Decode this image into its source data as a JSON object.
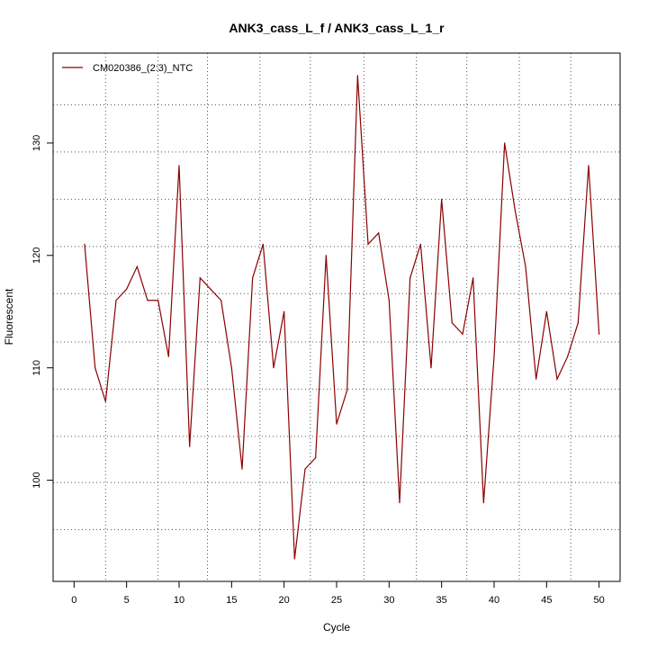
{
  "chart_data": {
    "type": "line",
    "title": "ANK3_cass_L_f / ANK3_cass_L_1_r",
    "xlabel": "Cycle",
    "ylabel": "Fluorescent",
    "xlim": [
      -2,
      52
    ],
    "ylim": [
      91,
      138
    ],
    "x_ticks": [
      0,
      5,
      10,
      15,
      20,
      25,
      30,
      35,
      40,
      45,
      50
    ],
    "y_ticks": [
      100,
      110,
      120,
      130
    ],
    "grid": "dotted",
    "vertical_gridlines": [
      3,
      8,
      12.7,
      17.7,
      22.5,
      27.6,
      32.6,
      37.4,
      42.4,
      47.3
    ],
    "horizontal_gridlines": [
      95.6,
      99.8,
      103.9,
      108.1,
      112.3,
      116.6,
      120.8,
      125.0,
      129.2,
      133.4
    ],
    "legend": {
      "placement": "top-left",
      "entries": [
        "CM020386_(2:3)_NTC"
      ]
    },
    "series": [
      {
        "name": "CM020386_(2:3)_NTC",
        "color": "#8B0000",
        "x": [
          1,
          2,
          3,
          4,
          5,
          6,
          7,
          8,
          9,
          10,
          11,
          12,
          13,
          14,
          15,
          16,
          17,
          18,
          19,
          20,
          21,
          22,
          23,
          24,
          25,
          26,
          27,
          28,
          29,
          30,
          31,
          32,
          33,
          34,
          35,
          36,
          37,
          38,
          39,
          40,
          41,
          42,
          43,
          44,
          45,
          46,
          47,
          48,
          49,
          50
        ],
        "y": [
          121,
          110,
          107,
          116,
          117,
          119,
          116,
          116,
          111,
          128,
          103,
          118,
          117,
          116,
          110,
          101,
          118,
          121,
          110,
          115,
          93,
          101,
          102,
          120,
          105,
          108,
          136,
          121,
          122,
          116,
          98,
          118,
          121,
          110,
          125,
          114,
          113,
          118,
          98,
          111,
          130,
          124,
          119,
          109,
          115,
          109,
          111,
          114,
          128,
          113
        ]
      }
    ]
  }
}
